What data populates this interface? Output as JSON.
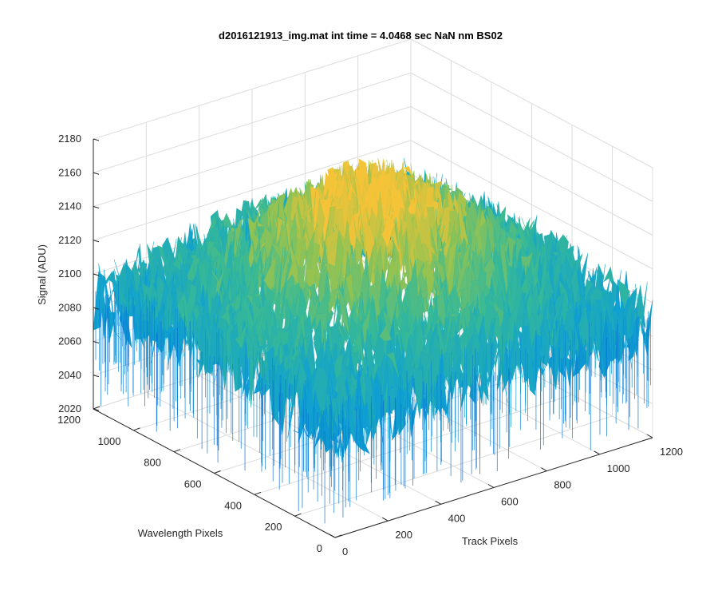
{
  "chart_data": {
    "type": "surface",
    "title": "d2016121913_img.mat int time = 4.0468 sec  NaN nm BS02",
    "xlabel": "Track Pixels",
    "ylabel": "Wavelength Pixels",
    "zlabel": "Signal (ADU)",
    "x_range": [
      0,
      1200
    ],
    "y_range": [
      0,
      1200
    ],
    "z_range": [
      2020,
      2180
    ],
    "x_ticks": [
      "0",
      "200",
      "400",
      "600",
      "800",
      "1000",
      "1200"
    ],
    "y_ticks": [
      "0",
      "200",
      "400",
      "600",
      "800",
      "1000",
      "1200"
    ],
    "z_ticks": [
      "2020",
      "2040",
      "2060",
      "2080",
      "2100",
      "2120",
      "2140",
      "2160",
      "2180"
    ],
    "grid": true,
    "colormap": "parula",
    "surface_summary": {
      "center_peak_signal": 2150,
      "edge_signal": 2085,
      "noise_amplitude": 25
    },
    "colors": {
      "low": "#0a87d0",
      "mid": "#35b5a0",
      "high": "#f0c23a",
      "axis": "#262626",
      "grid": "#dcdcdc"
    }
  }
}
